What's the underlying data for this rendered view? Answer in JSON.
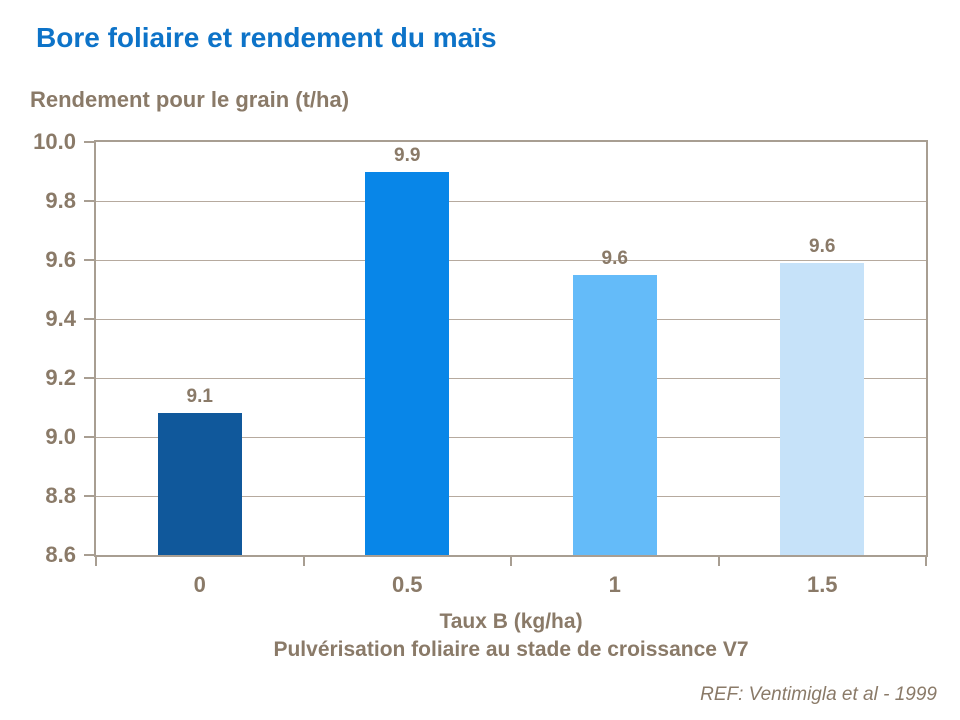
{
  "chart_data": {
    "type": "bar",
    "title": "Bore foliaire et rendement du maïs",
    "ylabel": "Rendement pour le grain (t/ha)",
    "xlabel": "Taux B (kg/ha)",
    "xlabel2": "Pulvérisation foliaire au stade de croissance V7",
    "annotation": "REF: Ventimigla et al - 1999",
    "categories": [
      "0",
      "0.5",
      "1",
      "1.5"
    ],
    "values": [
      9.08,
      9.9,
      9.55,
      9.59
    ],
    "value_labels": [
      "9.1",
      "9.9",
      "9.6",
      "9.6"
    ],
    "bar_colors": [
      "#10589b",
      "#0886e8",
      "#64bbf9",
      "#c6e2f9"
    ],
    "ylim": [
      8.6,
      10.0
    ],
    "yticks": [
      "10.0",
      "9.8",
      "9.6",
      "9.4",
      "9.2",
      "9.0",
      "8.8",
      "8.6"
    ],
    "grid": true,
    "legend": false
  },
  "colors": {
    "title_color": "#0d73c8",
    "text_color": "#8a7a68",
    "grid_color": "#b6aa9e",
    "border_color": "#a89e92"
  }
}
